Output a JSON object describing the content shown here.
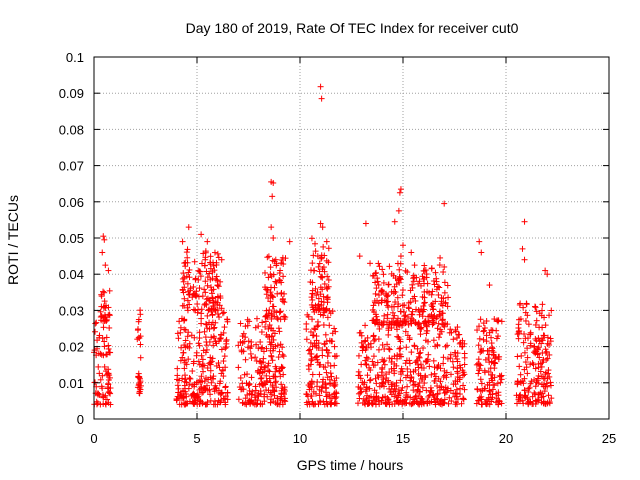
{
  "chart_data": {
    "type": "scatter",
    "title": "Day 180 of 2019, Rate Of TEC Index for receiver cut0",
    "xlabel": "GPS time / hours",
    "ylabel": "ROTI / TECUs",
    "xlim": [
      0,
      25
    ],
    "ylim": [
      0,
      0.1
    ],
    "xticks": [
      0,
      5,
      10,
      15,
      20,
      25
    ],
    "yticks": [
      0,
      0.01,
      0.02,
      0.03,
      0.04,
      0.05,
      0.06,
      0.07,
      0.08,
      0.09,
      0.1
    ],
    "grid": true,
    "marker": "plus",
    "color": "#ff0000",
    "clusters": [
      {
        "x": [
          0.0,
          0.8
        ],
        "y": [
          0.004,
          0.027
        ]
      },
      {
        "x": [
          0.3,
          0.8
        ],
        "y": [
          0.027,
          0.036
        ]
      },
      {
        "x": [
          2.1,
          2.3
        ],
        "y": [
          0.007,
          0.032
        ]
      },
      {
        "x": [
          4.0,
          6.5
        ],
        "y": [
          0.004,
          0.03
        ]
      },
      {
        "x": [
          4.3,
          6.2
        ],
        "y": [
          0.03,
          0.047
        ]
      },
      {
        "x": [
          7.0,
          9.3
        ],
        "y": [
          0.004,
          0.028
        ]
      },
      {
        "x": [
          8.3,
          9.3
        ],
        "y": [
          0.028,
          0.045
        ]
      },
      {
        "x": [
          10.3,
          11.8
        ],
        "y": [
          0.004,
          0.03
        ]
      },
      {
        "x": [
          10.5,
          11.4
        ],
        "y": [
          0.03,
          0.05
        ]
      },
      {
        "x": [
          12.8,
          18.0
        ],
        "y": [
          0.004,
          0.026
        ]
      },
      {
        "x": [
          13.5,
          17.2
        ],
        "y": [
          0.026,
          0.043
        ]
      },
      {
        "x": [
          18.5,
          19.8
        ],
        "y": [
          0.004,
          0.028
        ]
      },
      {
        "x": [
          20.5,
          22.2
        ],
        "y": [
          0.004,
          0.032
        ]
      }
    ],
    "outliers": [
      {
        "x": 0.45,
        "y": 0.0505
      },
      {
        "x": 0.5,
        "y": 0.0495
      },
      {
        "x": 0.4,
        "y": 0.046
      },
      {
        "x": 0.55,
        "y": 0.0425
      },
      {
        "x": 0.7,
        "y": 0.041
      },
      {
        "x": 4.3,
        "y": 0.049
      },
      {
        "x": 4.6,
        "y": 0.053
      },
      {
        "x": 5.2,
        "y": 0.051
      },
      {
        "x": 5.5,
        "y": 0.049
      },
      {
        "x": 5.4,
        "y": 0.044
      },
      {
        "x": 6.2,
        "y": 0.044
      },
      {
        "x": 8.6,
        "y": 0.0655
      },
      {
        "x": 8.7,
        "y": 0.0652
      },
      {
        "x": 8.65,
        "y": 0.0615
      },
      {
        "x": 8.6,
        "y": 0.053
      },
      {
        "x": 8.7,
        "y": 0.05
      },
      {
        "x": 9.5,
        "y": 0.049
      },
      {
        "x": 11.0,
        "y": 0.0918
      },
      {
        "x": 11.05,
        "y": 0.0885
      },
      {
        "x": 11.0,
        "y": 0.054
      },
      {
        "x": 11.1,
        "y": 0.053
      },
      {
        "x": 11.3,
        "y": 0.049
      },
      {
        "x": 13.2,
        "y": 0.054
      },
      {
        "x": 12.9,
        "y": 0.045
      },
      {
        "x": 13.4,
        "y": 0.043
      },
      {
        "x": 14.6,
        "y": 0.0545
      },
      {
        "x": 14.8,
        "y": 0.0575
      },
      {
        "x": 14.85,
        "y": 0.0625
      },
      {
        "x": 14.9,
        "y": 0.0635
      },
      {
        "x": 15.0,
        "y": 0.048
      },
      {
        "x": 14.9,
        "y": 0.045
      },
      {
        "x": 15.4,
        "y": 0.046
      },
      {
        "x": 17.0,
        "y": 0.0595
      },
      {
        "x": 16.8,
        "y": 0.0445
      },
      {
        "x": 17.0,
        "y": 0.042
      },
      {
        "x": 18.7,
        "y": 0.049
      },
      {
        "x": 18.8,
        "y": 0.046
      },
      {
        "x": 19.2,
        "y": 0.037
      },
      {
        "x": 20.9,
        "y": 0.0545
      },
      {
        "x": 20.8,
        "y": 0.047
      },
      {
        "x": 20.9,
        "y": 0.044
      },
      {
        "x": 21.9,
        "y": 0.041
      },
      {
        "x": 22.0,
        "y": 0.04
      }
    ]
  }
}
